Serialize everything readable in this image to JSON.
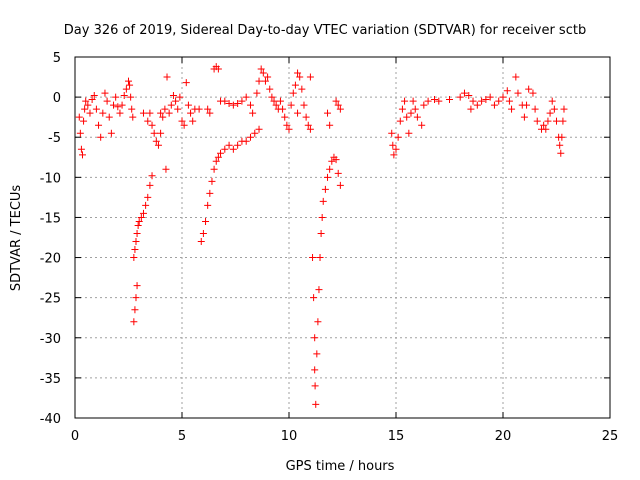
{
  "chart_data": {
    "type": "scatter",
    "title": "Day 326 of 2019, Sidereal Day-to-day VTEC variation (SDTVAR) for receiver sctb",
    "xlabel": "GPS time / hours",
    "ylabel": "SDTVAR / TECUs",
    "xlim": [
      0,
      25
    ],
    "ylim": [
      -40,
      5
    ],
    "xticks": [
      0,
      5,
      10,
      15,
      20,
      25
    ],
    "yticks": [
      5,
      0,
      -5,
      -10,
      -15,
      -20,
      -25,
      -30,
      -35,
      -40
    ],
    "xtick_labels": [
      "0",
      "5",
      "10",
      "15",
      "20",
      "25"
    ],
    "ytick_labels": [
      "5",
      "0",
      "-5",
      "-10",
      "-15",
      "-20",
      "-25",
      "-30",
      "-35",
      "-40"
    ],
    "grid": true,
    "marker": "+",
    "series": [
      {
        "name": "SDTVAR",
        "color": "#ff0000",
        "points": [
          [
            0.2,
            -2.5
          ],
          [
            0.25,
            -4.5
          ],
          [
            0.3,
            -6.5
          ],
          [
            0.35,
            -7.2
          ],
          [
            0.4,
            -3.0
          ],
          [
            0.45,
            -1.5
          ],
          [
            0.5,
            -0.5
          ],
          [
            0.6,
            -1.0
          ],
          [
            0.7,
            -2.0
          ],
          [
            0.8,
            -0.3
          ],
          [
            0.9,
            0.2
          ],
          [
            1.0,
            -1.5
          ],
          [
            1.1,
            -3.5
          ],
          [
            1.2,
            -5.0
          ],
          [
            1.3,
            -2.0
          ],
          [
            1.4,
            0.5
          ],
          [
            1.5,
            -0.5
          ],
          [
            1.6,
            -2.5
          ],
          [
            1.7,
            -4.5
          ],
          [
            1.8,
            -1.0
          ],
          [
            1.9,
            0.0
          ],
          [
            2.0,
            -1.2
          ],
          [
            2.1,
            -2.0
          ],
          [
            2.2,
            -1.0
          ],
          [
            2.3,
            0.2
          ],
          [
            2.4,
            1.0
          ],
          [
            2.5,
            2.0
          ],
          [
            2.55,
            1.5
          ],
          [
            2.6,
            0.0
          ],
          [
            2.65,
            -1.5
          ],
          [
            2.7,
            -2.5
          ],
          [
            2.75,
            -28.0
          ],
          [
            2.8,
            -26.5
          ],
          [
            2.85,
            -25.0
          ],
          [
            2.9,
            -23.5
          ],
          [
            2.75,
            -20.0
          ],
          [
            2.8,
            -19.0
          ],
          [
            2.85,
            -18.0
          ],
          [
            2.9,
            -17.0
          ],
          [
            2.95,
            -16.0
          ],
          [
            3.0,
            -15.5
          ],
          [
            3.1,
            -15.0
          ],
          [
            3.2,
            -14.5
          ],
          [
            3.3,
            -13.5
          ],
          [
            3.4,
            -12.5
          ],
          [
            3.5,
            -11.0
          ],
          [
            3.6,
            -9.8
          ],
          [
            3.2,
            -2.0
          ],
          [
            3.4,
            -3.0
          ],
          [
            3.5,
            -2.0
          ],
          [
            3.6,
            -3.5
          ],
          [
            3.7,
            -4.5
          ],
          [
            3.8,
            -5.5
          ],
          [
            3.9,
            -6.0
          ],
          [
            4.0,
            -4.5
          ],
          [
            4.1,
            -2.5
          ],
          [
            4.2,
            -1.5
          ],
          [
            4.0,
            -2.0
          ],
          [
            4.25,
            -9.0
          ],
          [
            4.3,
            2.5
          ],
          [
            4.4,
            -2.0
          ],
          [
            4.5,
            -1.0
          ],
          [
            4.6,
            0.2
          ],
          [
            4.7,
            -0.5
          ],
          [
            4.8,
            -1.5
          ],
          [
            4.9,
            0.0
          ],
          [
            5.0,
            -3.0
          ],
          [
            5.1,
            -3.5
          ],
          [
            5.2,
            1.8
          ],
          [
            5.3,
            -1.0
          ],
          [
            5.4,
            -2.0
          ],
          [
            5.5,
            -3.0
          ],
          [
            5.6,
            -1.5
          ],
          [
            5.8,
            -1.5
          ],
          [
            5.9,
            -18.0
          ],
          [
            6.0,
            -17.0
          ],
          [
            6.1,
            -15.5
          ],
          [
            6.2,
            -13.5
          ],
          [
            6.3,
            -12.0
          ],
          [
            6.4,
            -10.5
          ],
          [
            6.5,
            -9.0
          ],
          [
            6.6,
            -8.0
          ],
          [
            6.7,
            -7.5
          ],
          [
            6.8,
            -7.0
          ],
          [
            7.0,
            -6.5
          ],
          [
            7.2,
            -6.0
          ],
          [
            7.4,
            -6.5
          ],
          [
            7.6,
            -6.0
          ],
          [
            7.8,
            -5.5
          ],
          [
            8.0,
            -5.5
          ],
          [
            8.2,
            -5.0
          ],
          [
            8.4,
            -4.5
          ],
          [
            8.6,
            -4.0
          ],
          [
            6.2,
            -1.5
          ],
          [
            6.3,
            -2.0
          ],
          [
            6.5,
            3.5
          ],
          [
            6.6,
            3.8
          ],
          [
            6.7,
            3.5
          ],
          [
            6.8,
            -0.5
          ],
          [
            7.0,
            -0.5
          ],
          [
            7.2,
            -0.8
          ],
          [
            7.4,
            -1.0
          ],
          [
            7.6,
            -0.8
          ],
          [
            7.8,
            -0.5
          ],
          [
            8.0,
            0.0
          ],
          [
            8.2,
            -1.0
          ],
          [
            8.3,
            -2.0
          ],
          [
            8.5,
            0.5
          ],
          [
            8.6,
            2.0
          ],
          [
            8.7,
            3.5
          ],
          [
            8.8,
            3.0
          ],
          [
            8.9,
            2.0
          ],
          [
            9.0,
            2.5
          ],
          [
            9.1,
            1.0
          ],
          [
            9.2,
            0.0
          ],
          [
            9.3,
            -0.5
          ],
          [
            9.4,
            -1.0
          ],
          [
            9.5,
            -1.5
          ],
          [
            9.6,
            -0.5
          ],
          [
            9.7,
            -1.5
          ],
          [
            9.8,
            -2.5
          ],
          [
            9.9,
            -3.5
          ],
          [
            10.0,
            -4.0
          ],
          [
            10.1,
            -1.0
          ],
          [
            10.2,
            0.5
          ],
          [
            10.3,
            1.5
          ],
          [
            10.4,
            3.0
          ],
          [
            10.5,
            2.5
          ],
          [
            10.6,
            1.0
          ],
          [
            10.7,
            -1.0
          ],
          [
            10.8,
            -2.5
          ],
          [
            10.9,
            -3.5
          ],
          [
            11.0,
            -4.0
          ],
          [
            11.0,
            2.5
          ],
          [
            10.4,
            -2.0
          ],
          [
            11.1,
            -20.0
          ],
          [
            11.15,
            -25.0
          ],
          [
            11.2,
            -30.0
          ],
          [
            11.2,
            -34.0
          ],
          [
            11.22,
            -36.0
          ],
          [
            11.25,
            -38.3
          ],
          [
            11.3,
            -32.0
          ],
          [
            11.35,
            -28.0
          ],
          [
            11.4,
            -24.0
          ],
          [
            11.45,
            -20.0
          ],
          [
            11.5,
            -17.0
          ],
          [
            11.55,
            -15.0
          ],
          [
            11.6,
            -13.0
          ],
          [
            11.7,
            -11.5
          ],
          [
            11.8,
            -10.0
          ],
          [
            11.9,
            -9.0
          ],
          [
            12.0,
            -8.0
          ],
          [
            12.1,
            -7.5
          ],
          [
            12.2,
            -7.8
          ],
          [
            12.3,
            -9.5
          ],
          [
            12.4,
            -11.0
          ],
          [
            11.8,
            -2.0
          ],
          [
            11.9,
            -3.5
          ],
          [
            12.2,
            -0.5
          ],
          [
            12.3,
            -1.0
          ],
          [
            12.4,
            -1.5
          ],
          [
            14.8,
            -4.5
          ],
          [
            14.85,
            -6.0
          ],
          [
            14.9,
            -7.2
          ],
          [
            15.0,
            -6.5
          ],
          [
            15.1,
            -5.0
          ],
          [
            15.2,
            -3.0
          ],
          [
            15.3,
            -1.5
          ],
          [
            15.4,
            -0.5
          ],
          [
            15.5,
            -2.5
          ],
          [
            15.6,
            -4.5
          ],
          [
            15.7,
            -2.0
          ],
          [
            15.8,
            -0.5
          ],
          [
            15.9,
            -1.5
          ],
          [
            16.0,
            -2.5
          ],
          [
            16.2,
            -3.5
          ],
          [
            16.3,
            -1.0
          ],
          [
            16.5,
            -0.5
          ],
          [
            16.8,
            -0.3
          ],
          [
            17.0,
            -0.5
          ],
          [
            17.5,
            -0.3
          ],
          [
            18.0,
            0.0
          ],
          [
            18.2,
            0.5
          ],
          [
            18.4,
            0.2
          ],
          [
            18.5,
            -1.5
          ],
          [
            18.6,
            -0.5
          ],
          [
            18.8,
            -1.0
          ],
          [
            19.0,
            -0.5
          ],
          [
            19.2,
            -0.3
          ],
          [
            19.4,
            0.0
          ],
          [
            19.6,
            -1.0
          ],
          [
            19.8,
            -0.5
          ],
          [
            20.0,
            0.0
          ],
          [
            20.2,
            0.8
          ],
          [
            20.3,
            -0.5
          ],
          [
            20.4,
            -1.5
          ],
          [
            20.6,
            2.5
          ],
          [
            20.7,
            0.5
          ],
          [
            20.9,
            -1.0
          ],
          [
            21.0,
            -2.5
          ],
          [
            21.1,
            -1.0
          ],
          [
            21.2,
            1.0
          ],
          [
            21.4,
            0.5
          ],
          [
            21.5,
            -1.5
          ],
          [
            21.6,
            -3.0
          ],
          [
            21.8,
            -4.0
          ],
          [
            21.9,
            -3.5
          ],
          [
            22.0,
            -4.0
          ],
          [
            22.1,
            -3.0
          ],
          [
            22.2,
            -2.0
          ],
          [
            22.3,
            -0.5
          ],
          [
            22.4,
            -1.5
          ],
          [
            22.5,
            -3.0
          ],
          [
            22.6,
            -5.0
          ],
          [
            22.65,
            -6.0
          ],
          [
            22.7,
            -7.0
          ],
          [
            22.75,
            -5.0
          ],
          [
            22.8,
            -3.0
          ],
          [
            22.85,
            -1.5
          ]
        ]
      }
    ]
  }
}
